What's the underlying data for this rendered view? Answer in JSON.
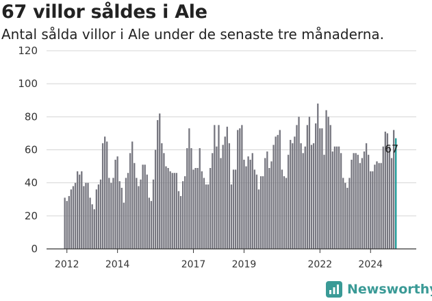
{
  "header": {
    "title": "67 villor såldes i Ale",
    "subtitle": "Antal sålda villor i Ale under de senaste tre månaderna."
  },
  "brand": {
    "name": "Newsworthy"
  },
  "colors": {
    "bar": "#76767f",
    "highlight": "#1a9a96",
    "grid": "#d4d4d4"
  },
  "chart_data": {
    "type": "bar",
    "title": "67 villor såldes i Ale",
    "subtitle": "Antal sålda villor i Ale under de senaste tre månaderna.",
    "xlabel": "",
    "ylabel": "",
    "ylim": [
      0,
      120
    ],
    "yticks": [
      0,
      20,
      40,
      60,
      80,
      100,
      120
    ],
    "xticks": [
      {
        "label": "2012",
        "index": 1
      },
      {
        "label": "2014",
        "index": 25
      },
      {
        "label": "2017",
        "index": 61
      },
      {
        "label": "2019",
        "index": 85
      },
      {
        "label": "2022",
        "index": 121
      },
      {
        "label": "2024",
        "index": 145
      }
    ],
    "grid": true,
    "legend": "none",
    "annotation": {
      "text": "67",
      "index": 155
    },
    "values": [
      31,
      29,
      32,
      36,
      38,
      40,
      47,
      45,
      47,
      38,
      40,
      40,
      31,
      27,
      24,
      36,
      39,
      42,
      64,
      68,
      65,
      43,
      40,
      43,
      54,
      56,
      41,
      37,
      28,
      43,
      46,
      58,
      65,
      52,
      43,
      38,
      42,
      51,
      51,
      45,
      31,
      29,
      42,
      60,
      78,
      82,
      64,
      58,
      50,
      49,
      47,
      46,
      46,
      46,
      35,
      32,
      41,
      44,
      61,
      73,
      61,
      48,
      49,
      49,
      61,
      47,
      43,
      39,
      39,
      49,
      58,
      75,
      62,
      75,
      55,
      63,
      68,
      74,
      64,
      39,
      48,
      48,
      72,
      73,
      75,
      54,
      50,
      56,
      54,
      58,
      48,
      45,
      36,
      44,
      44,
      55,
      59,
      49,
      53,
      63,
      68,
      69,
      72,
      48,
      44,
      43,
      57,
      66,
      64,
      68,
      75,
      80,
      64,
      58,
      62,
      75,
      80,
      63,
      64,
      76,
      88,
      73,
      73,
      57,
      84,
      80,
      75,
      59,
      62,
      62,
      62,
      58,
      43,
      40,
      37,
      43,
      54,
      58,
      58,
      57,
      52,
      55,
      59,
      64,
      57,
      47,
      47,
      51,
      53,
      52,
      52,
      62,
      71,
      70,
      62,
      55,
      72,
      67
    ]
  }
}
